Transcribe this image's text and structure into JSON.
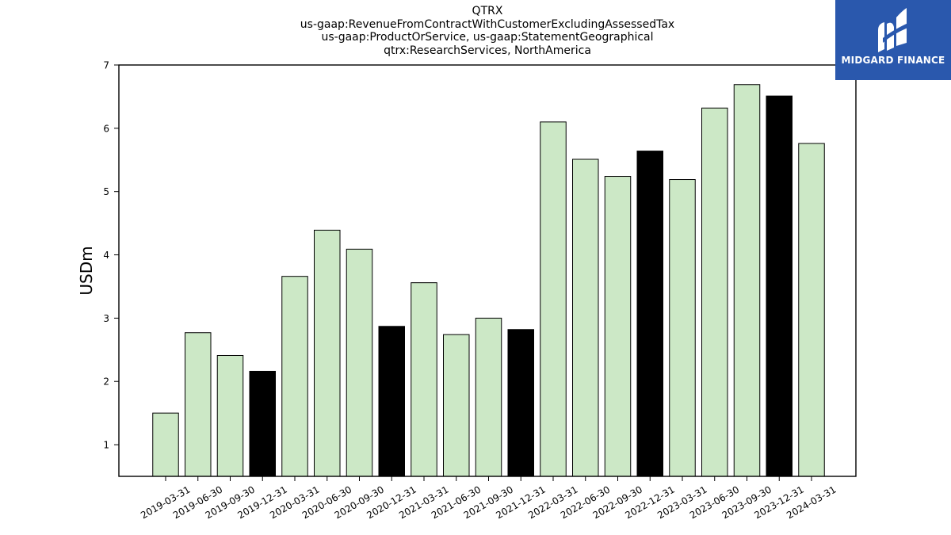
{
  "chart_data": {
    "type": "bar",
    "title_lines": [
      "QTRX",
      "us-gaap:RevenueFromContractWithCustomerExcludingAssessedTax",
      "us-gaap:ProductOrService, us-gaap:StatementGeographical",
      "qtrx:ResearchServices, NorthAmerica"
    ],
    "ylabel": "USDm",
    "xlabel": "",
    "ylim": [
      0.5,
      7
    ],
    "yticks": [
      1,
      2,
      3,
      4,
      5,
      6,
      7
    ],
    "categories": [
      "2019-03-31",
      "2019-06-30",
      "2019-09-30",
      "2019-12-31",
      "2020-03-31",
      "2020-06-30",
      "2020-09-30",
      "2020-12-31",
      "2021-03-31",
      "2021-06-30",
      "2021-09-30",
      "2021-12-31",
      "2022-03-31",
      "2022-06-30",
      "2022-09-30",
      "2022-12-31",
      "2023-03-31",
      "2023-06-30",
      "2023-09-30",
      "2023-12-31",
      "2024-03-31"
    ],
    "values": [
      1.5,
      2.77,
      2.41,
      2.16,
      3.66,
      4.39,
      4.09,
      2.87,
      3.56,
      2.74,
      3.0,
      2.82,
      6.1,
      5.51,
      5.24,
      5.64,
      5.19,
      6.32,
      6.69,
      6.51,
      5.76
    ],
    "highlight": [
      false,
      false,
      false,
      true,
      false,
      false,
      false,
      true,
      false,
      false,
      false,
      true,
      false,
      false,
      false,
      true,
      false,
      false,
      false,
      true,
      false
    ],
    "colors": {
      "bar": "#cce8c6",
      "highlight": "#000000",
      "edge": "#000000"
    },
    "grid": false,
    "legend": "none"
  },
  "logo": {
    "text": "MIDGARD FINANCE",
    "background": "#2a58ad"
  }
}
